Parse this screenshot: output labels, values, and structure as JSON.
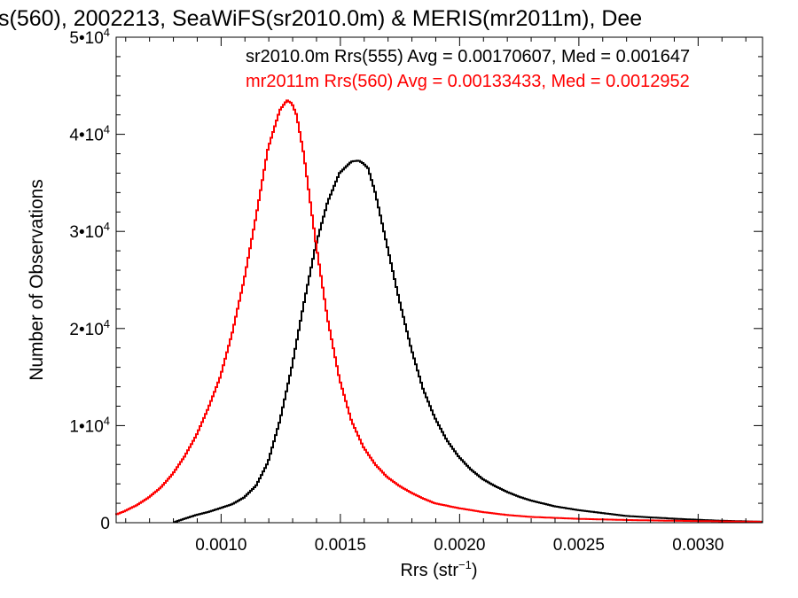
{
  "chart_data": {
    "type": "line",
    "title": "s(560), 2002213, SeaWiFS(sr2010.0m) & MERIS(mr2011m), Dee",
    "xlabel": "Rrs (str",
    "xlabel_sup": "−1",
    "xlabel_tail": ")",
    "ylabel": "Number of Observations",
    "xlim": [
      0.00056,
      0.00327
    ],
    "ylim": [
      0,
      50000
    ],
    "x_ticks": [
      {
        "value": 0.001,
        "label": "0.0010"
      },
      {
        "value": 0.0015,
        "label": "0.0015"
      },
      {
        "value": 0.002,
        "label": "0.0020"
      },
      {
        "value": 0.0025,
        "label": "0.0025"
      },
      {
        "value": 0.003,
        "label": "0.0030"
      }
    ],
    "y_ticks": [
      {
        "value": 0,
        "mant": "0",
        "exp": ""
      },
      {
        "value": 10000,
        "mant": "1•10",
        "exp": "4"
      },
      {
        "value": 20000,
        "mant": "2•10",
        "exp": "4"
      },
      {
        "value": 30000,
        "mant": "3•10",
        "exp": "4"
      },
      {
        "value": 40000,
        "mant": "4•10",
        "exp": "4"
      },
      {
        "value": 50000,
        "mant": "5•10",
        "exp": "4"
      }
    ],
    "grid": false,
    "style": "histogram-step",
    "series": [
      {
        "name": "sr2010.0m Rrs(555) Avg = 0.00170607, Med = 0.001647",
        "color": "#000000",
        "x": [
          0.0008,
          0.00085,
          0.0009,
          0.00095,
          0.001,
          0.00105,
          0.0011,
          0.00115,
          0.0012,
          0.00125,
          0.0013,
          0.00135,
          0.0014,
          0.00145,
          0.0015,
          0.00155,
          0.00158,
          0.0016,
          0.00162,
          0.00165,
          0.0017,
          0.00175,
          0.0018,
          0.00185,
          0.0019,
          0.00195,
          0.002,
          0.00205,
          0.0021,
          0.00215,
          0.0022,
          0.00225,
          0.0023,
          0.0024,
          0.0025,
          0.0026,
          0.0027,
          0.0028,
          0.0029,
          0.003,
          0.0031,
          0.00327
        ],
        "y": [
          0,
          400,
          800,
          1100,
          1500,
          1900,
          2600,
          3800,
          6200,
          10500,
          16000,
          22500,
          28500,
          33000,
          36000,
          37200,
          37300,
          37000,
          36500,
          34000,
          28500,
          23000,
          18000,
          13800,
          10800,
          8500,
          6800,
          5500,
          4500,
          3800,
          3200,
          2700,
          2300,
          1700,
          1300,
          1000,
          700,
          550,
          420,
          300,
          200,
          100
        ]
      },
      {
        "name": "mr2011m Rrs(560) Avg = 0.00133433, Med = 0.0012952",
        "color": "#ff0000",
        "x": [
          0.00056,
          0.0006,
          0.00065,
          0.0007,
          0.00075,
          0.0008,
          0.00085,
          0.0009,
          0.00095,
          0.001,
          0.00105,
          0.0011,
          0.00115,
          0.0012,
          0.00125,
          0.00128,
          0.0013,
          0.00132,
          0.00135,
          0.0014,
          0.00145,
          0.0015,
          0.00155,
          0.0016,
          0.00165,
          0.0017,
          0.00175,
          0.0018,
          0.00185,
          0.0019,
          0.002,
          0.0021,
          0.0022,
          0.0023,
          0.0025,
          0.0027,
          0.0029,
          0.0031,
          0.00327
        ],
        "y": [
          800,
          1200,
          1800,
          2600,
          3600,
          5000,
          6800,
          9000,
          11800,
          15000,
          19500,
          25000,
          31500,
          38500,
          42500,
          43500,
          43200,
          42000,
          38000,
          29000,
          21000,
          14800,
          10500,
          7800,
          6000,
          4700,
          3800,
          3100,
          2500,
          2000,
          1500,
          1100,
          800,
          600,
          400,
          280,
          200,
          140,
          100
        ]
      }
    ]
  }
}
